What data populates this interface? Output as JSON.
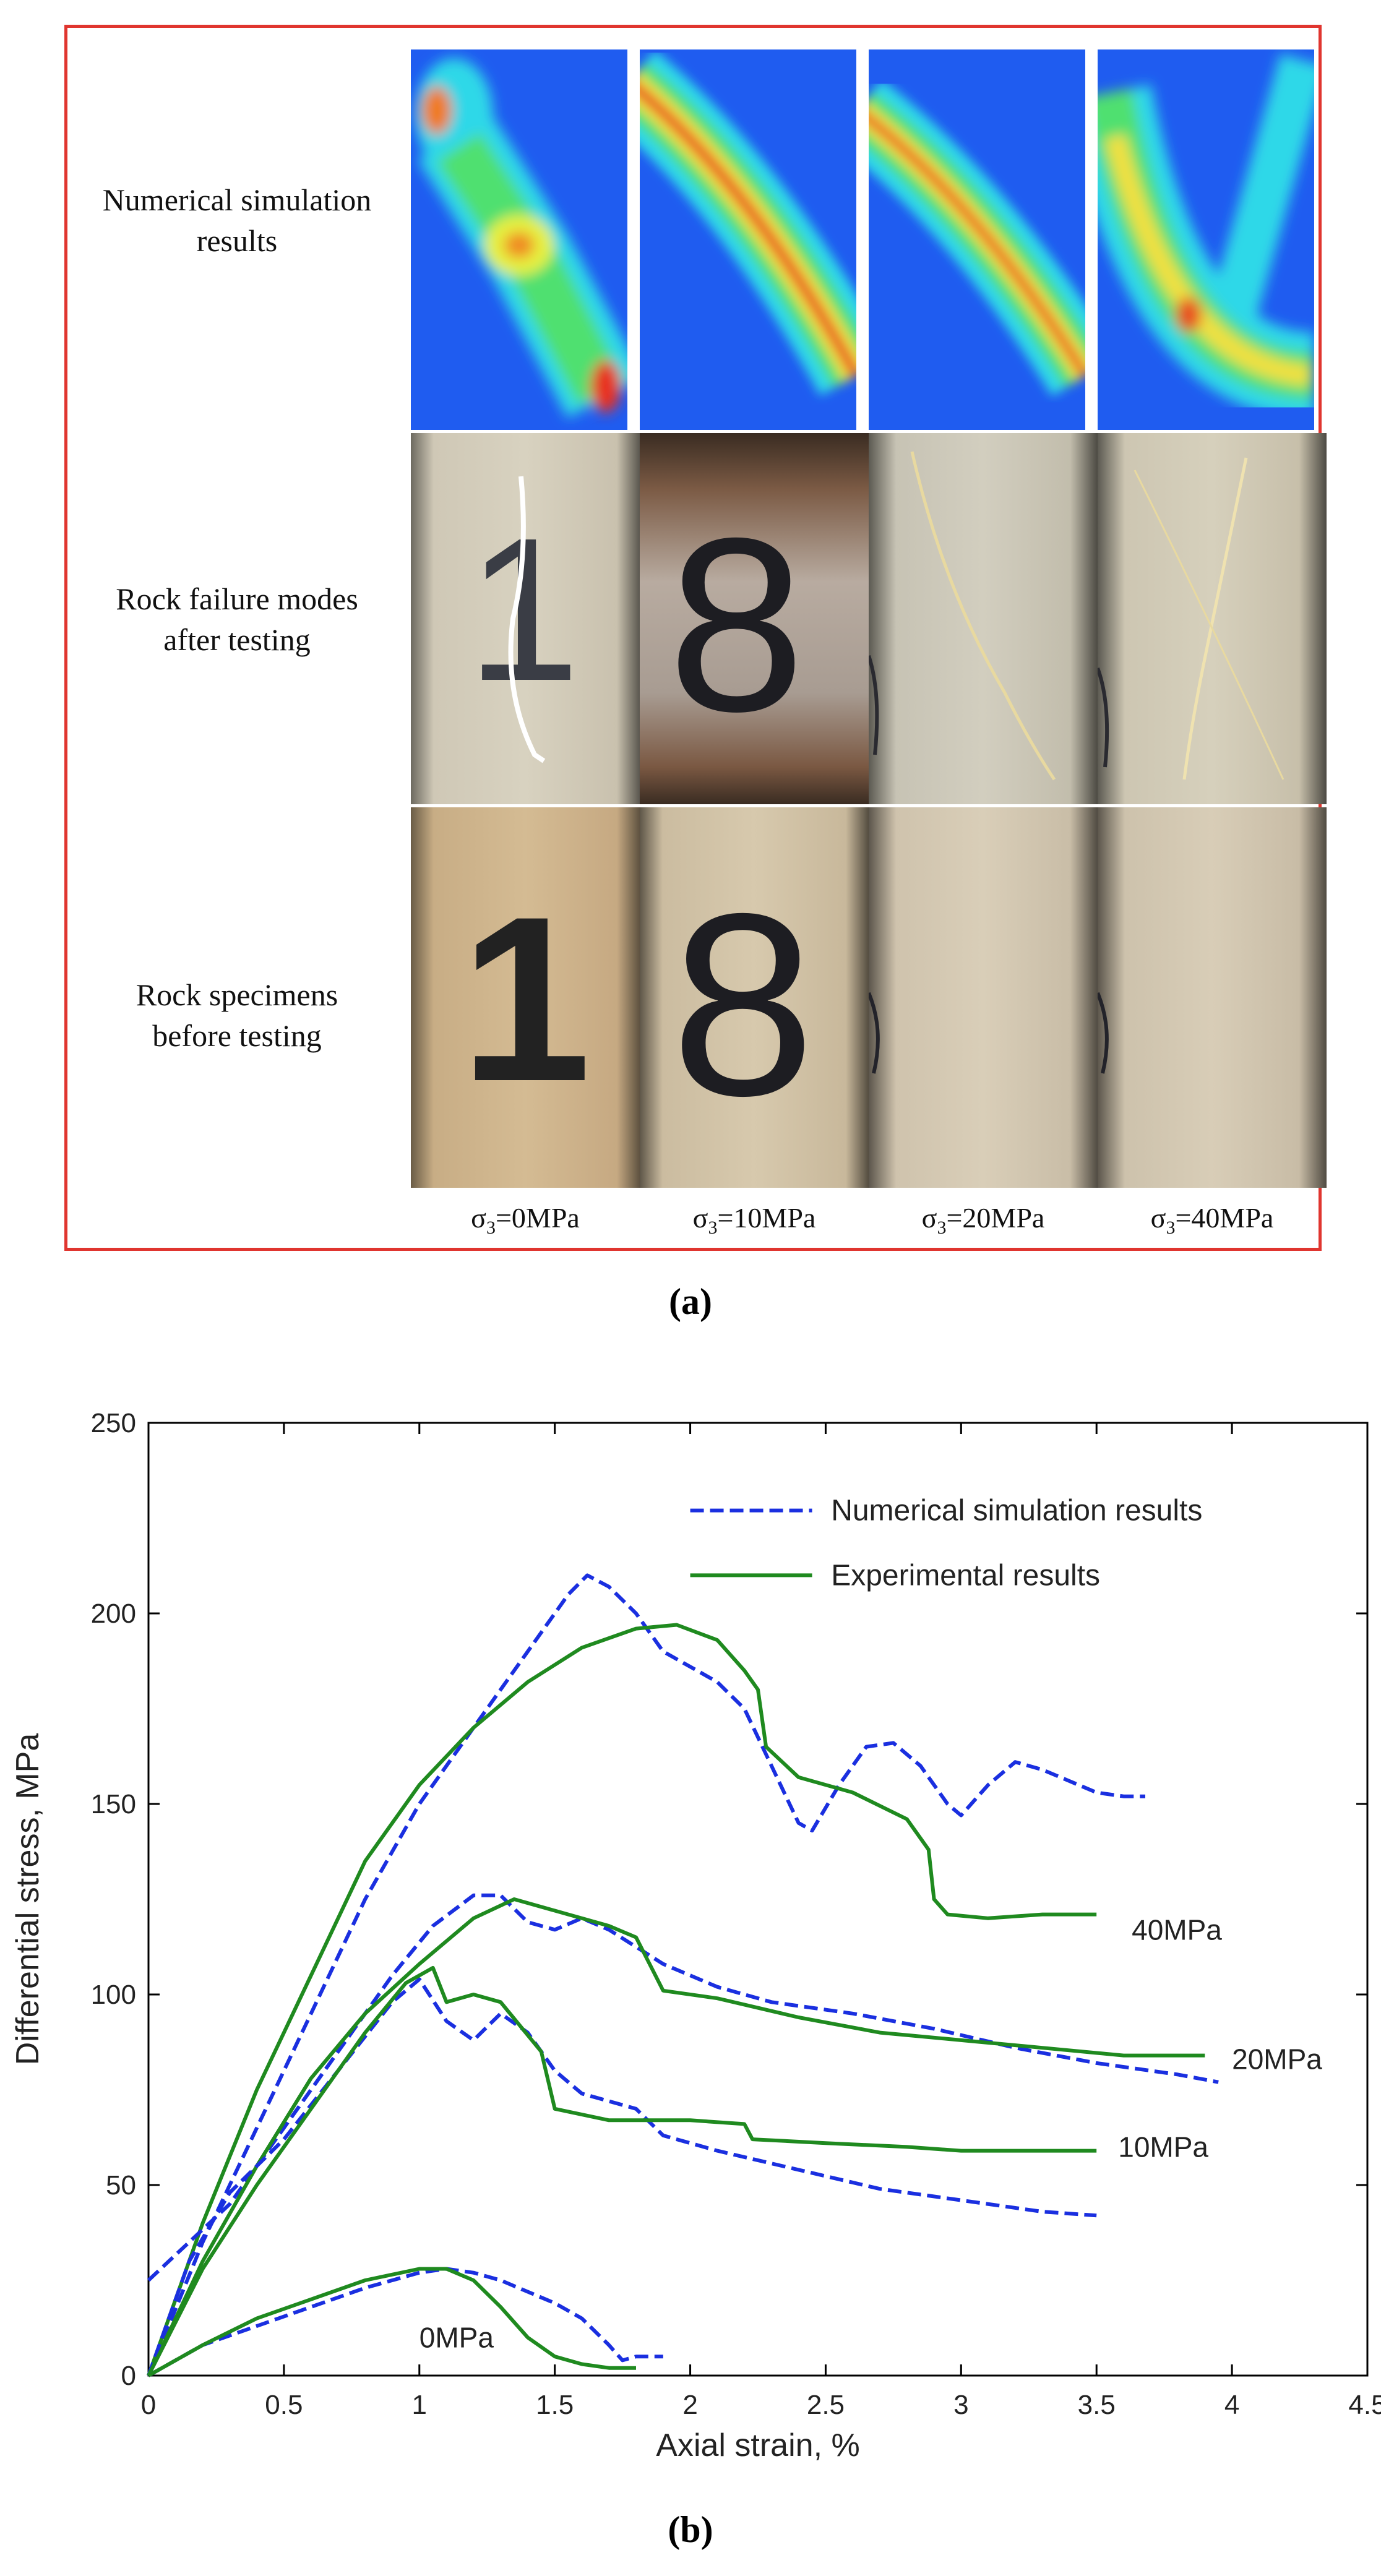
{
  "figure_a": {
    "row_labels": [
      [
        "Numerical simulation",
        "results"
      ],
      [
        "Rock failure modes",
        "after testing"
      ],
      [
        "Rock specimens",
        "before testing"
      ]
    ],
    "columns": [
      {
        "sym": "σ",
        "sub": "3",
        "value": "=0MPa"
      },
      {
        "sym": "σ",
        "sub": "3",
        "value": "=10MPa"
      },
      {
        "sym": "σ",
        "sub": "3",
        "value": "=20MPa"
      },
      {
        "sym": "σ",
        "sub": "3",
        "value": "=40MPa"
      }
    ],
    "specimen_labels": [
      "1",
      "8"
    ],
    "frame_color": "#e0352f",
    "caption": "(a)"
  },
  "figure_b": {
    "caption": "(b)"
  },
  "chart_data": {
    "type": "line",
    "xlabel": "Axial strain, %",
    "ylabel": "Differential stress, MPa",
    "xlim": [
      0,
      4.5
    ],
    "ylim": [
      0,
      250
    ],
    "xticks": [
      "0",
      "0.5",
      "1",
      "1.5",
      "2",
      "2.5",
      "3",
      "3.5",
      "4",
      "4.5"
    ],
    "yticks": [
      "0",
      "50",
      "100",
      "150",
      "200",
      "250"
    ],
    "grid": false,
    "legend": [
      {
        "name": "Numerical simulation results",
        "style": "dashed",
        "color": "#1a2fe0"
      },
      {
        "name": "Experimental results",
        "style": "solid",
        "color": "#1f8a1f"
      }
    ],
    "legend_position": "top-right",
    "annotations": [
      {
        "text": "40MPa",
        "x": 3.63,
        "y": 117
      },
      {
        "text": "20MPa",
        "x": 4.0,
        "y": 83
      },
      {
        "text": "10MPa",
        "x": 3.58,
        "y": 60
      },
      {
        "text": "0MPa",
        "x": 1.0,
        "y": 10
      }
    ],
    "series": [
      {
        "group": "40MPa",
        "kind": "numerical",
        "color": "#1a2fe0",
        "dash": true,
        "points": [
          [
            0,
            0
          ],
          [
            0.2,
            35
          ],
          [
            0.4,
            65
          ],
          [
            0.6,
            95
          ],
          [
            0.8,
            125
          ],
          [
            1.0,
            150
          ],
          [
            1.2,
            170
          ],
          [
            1.4,
            190
          ],
          [
            1.55,
            205
          ],
          [
            1.62,
            210
          ],
          [
            1.7,
            207
          ],
          [
            1.8,
            200
          ],
          [
            1.9,
            190
          ],
          [
            2.0,
            186
          ],
          [
            2.1,
            182
          ],
          [
            2.2,
            175
          ],
          [
            2.3,
            160
          ],
          [
            2.4,
            145
          ],
          [
            2.45,
            143
          ],
          [
            2.55,
            155
          ],
          [
            2.65,
            165
          ],
          [
            2.75,
            166
          ],
          [
            2.85,
            160
          ],
          [
            2.95,
            150
          ],
          [
            3.0,
            147
          ],
          [
            3.1,
            155
          ],
          [
            3.2,
            161
          ],
          [
            3.3,
            159
          ],
          [
            3.4,
            156
          ],
          [
            3.5,
            153
          ],
          [
            3.6,
            152
          ],
          [
            3.68,
            152
          ]
        ]
      },
      {
        "group": "40MPa",
        "kind": "experimental",
        "color": "#1f8a1f",
        "dash": false,
        "points": [
          [
            0,
            0
          ],
          [
            0.2,
            40
          ],
          [
            0.4,
            75
          ],
          [
            0.6,
            105
          ],
          [
            0.8,
            135
          ],
          [
            1.0,
            155
          ],
          [
            1.2,
            170
          ],
          [
            1.4,
            182
          ],
          [
            1.6,
            191
          ],
          [
            1.8,
            196
          ],
          [
            1.95,
            197
          ],
          [
            2.1,
            193
          ],
          [
            2.2,
            185
          ],
          [
            2.25,
            180
          ],
          [
            2.28,
            165
          ],
          [
            2.4,
            157
          ],
          [
            2.6,
            153
          ],
          [
            2.8,
            146
          ],
          [
            2.88,
            138
          ],
          [
            2.9,
            125
          ],
          [
            2.95,
            121
          ],
          [
            3.1,
            120
          ],
          [
            3.3,
            121
          ],
          [
            3.5,
            121
          ]
        ]
      },
      {
        "group": "20MPa",
        "kind": "numerical",
        "color": "#1a2fe0",
        "dash": true,
        "points": [
          [
            0,
            25
          ],
          [
            0.15,
            35
          ],
          [
            0.3,
            45
          ],
          [
            0.5,
            65
          ],
          [
            0.7,
            85
          ],
          [
            0.9,
            105
          ],
          [
            1.05,
            118
          ],
          [
            1.2,
            126
          ],
          [
            1.3,
            126
          ],
          [
            1.4,
            119
          ],
          [
            1.5,
            117
          ],
          [
            1.6,
            120
          ],
          [
            1.7,
            117
          ],
          [
            1.9,
            108
          ],
          [
            2.1,
            102
          ],
          [
            2.3,
            98
          ],
          [
            2.6,
            95
          ],
          [
            2.9,
            91
          ],
          [
            3.2,
            86
          ],
          [
            3.5,
            82
          ],
          [
            3.8,
            79
          ],
          [
            3.95,
            77
          ]
        ]
      },
      {
        "group": "20MPa",
        "kind": "experimental",
        "color": "#1f8a1f",
        "dash": false,
        "points": [
          [
            0,
            0
          ],
          [
            0.2,
            30
          ],
          [
            0.4,
            55
          ],
          [
            0.6,
            78
          ],
          [
            0.8,
            95
          ],
          [
            1.0,
            108
          ],
          [
            1.2,
            120
          ],
          [
            1.35,
            125
          ],
          [
            1.5,
            122
          ],
          [
            1.7,
            118
          ],
          [
            1.8,
            115
          ],
          [
            1.85,
            108
          ],
          [
            1.9,
            101
          ],
          [
            2.1,
            99
          ],
          [
            2.4,
            94
          ],
          [
            2.7,
            90
          ],
          [
            3.0,
            88
          ],
          [
            3.3,
            86
          ],
          [
            3.6,
            84
          ],
          [
            3.9,
            84
          ]
        ]
      },
      {
        "group": "10MPa",
        "kind": "numerical",
        "color": "#1a2fe0",
        "dash": true,
        "points": [
          [
            0,
            0
          ],
          [
            0.15,
            30
          ],
          [
            0.3,
            48
          ],
          [
            0.5,
            62
          ],
          [
            0.7,
            80
          ],
          [
            0.9,
            98
          ],
          [
            1.0,
            104
          ],
          [
            1.1,
            93
          ],
          [
            1.2,
            88
          ],
          [
            1.3,
            95
          ],
          [
            1.4,
            90
          ],
          [
            1.5,
            80
          ],
          [
            1.6,
            74
          ],
          [
            1.8,
            70
          ],
          [
            1.9,
            63
          ],
          [
            2.1,
            59
          ],
          [
            2.4,
            54
          ],
          [
            2.7,
            49
          ],
          [
            3.0,
            46
          ],
          [
            3.3,
            43
          ],
          [
            3.5,
            42
          ]
        ]
      },
      {
        "group": "10MPa",
        "kind": "experimental",
        "color": "#1f8a1f",
        "dash": false,
        "points": [
          [
            0,
            0
          ],
          [
            0.2,
            28
          ],
          [
            0.4,
            50
          ],
          [
            0.6,
            70
          ],
          [
            0.8,
            90
          ],
          [
            0.95,
            103
          ],
          [
            1.05,
            107
          ],
          [
            1.1,
            98
          ],
          [
            1.2,
            100
          ],
          [
            1.3,
            98
          ],
          [
            1.45,
            85
          ],
          [
            1.5,
            70
          ],
          [
            1.7,
            67
          ],
          [
            2.0,
            67
          ],
          [
            2.2,
            66
          ],
          [
            2.23,
            62
          ],
          [
            2.5,
            61
          ],
          [
            2.8,
            60
          ],
          [
            3.0,
            59
          ],
          [
            3.3,
            59
          ],
          [
            3.5,
            59
          ]
        ]
      },
      {
        "group": "0MPa",
        "kind": "numerical",
        "color": "#1a2fe0",
        "dash": true,
        "points": [
          [
            0,
            0
          ],
          [
            0.2,
            8
          ],
          [
            0.4,
            13
          ],
          [
            0.6,
            18
          ],
          [
            0.8,
            23
          ],
          [
            1.0,
            27
          ],
          [
            1.1,
            28
          ],
          [
            1.2,
            27
          ],
          [
            1.3,
            25
          ],
          [
            1.4,
            22
          ],
          [
            1.5,
            19
          ],
          [
            1.6,
            15
          ],
          [
            1.7,
            8
          ],
          [
            1.75,
            4
          ],
          [
            1.8,
            5
          ],
          [
            1.9,
            5
          ]
        ]
      },
      {
        "group": "0MPa",
        "kind": "experimental",
        "color": "#1f8a1f",
        "dash": false,
        "points": [
          [
            0,
            0
          ],
          [
            0.2,
            8
          ],
          [
            0.4,
            15
          ],
          [
            0.6,
            20
          ],
          [
            0.8,
            25
          ],
          [
            1.0,
            28
          ],
          [
            1.1,
            28
          ],
          [
            1.2,
            25
          ],
          [
            1.3,
            18
          ],
          [
            1.4,
            10
          ],
          [
            1.5,
            5
          ],
          [
            1.6,
            3
          ],
          [
            1.7,
            2
          ],
          [
            1.8,
            2
          ]
        ]
      }
    ]
  }
}
